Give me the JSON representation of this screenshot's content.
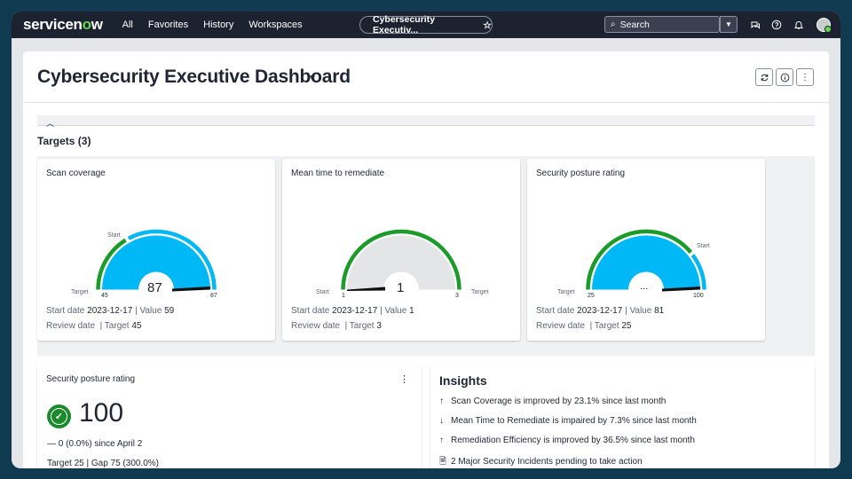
{
  "nav": {
    "brand_prefix": "servicen",
    "brand_o": "o",
    "brand_suffix": "w",
    "links": [
      "All",
      "Favorites",
      "History",
      "Workspaces"
    ],
    "pill_label": "Cybersecurity Executiv...",
    "search_label": "Search"
  },
  "dashboard": {
    "title": "Cybersecurity Executive Dashboard",
    "section_title": "Targets (3)"
  },
  "cards": [
    {
      "title": "Scan coverage",
      "center_value": "87",
      "min_label": "45",
      "max_label": "87",
      "start_label": "Start",
      "target_label": "Target",
      "start_date_label": "Start date",
      "start_date": "2023-12-17",
      "value_label": "Value",
      "value": "59",
      "review_label": "Review date",
      "target_text_label": "Target",
      "target_value": "45",
      "gauge": {
        "min": 45,
        "max": 87,
        "start": 59,
        "target": 45,
        "value": 87
      },
      "colors": {
        "fill": "#00b8f5",
        "ring_outer": "#1b9c2a",
        "ring_outer_secondary": "#00b8f5"
      }
    },
    {
      "title": "Mean time to remediate",
      "center_value": "1",
      "min_label": "1",
      "max_label": "3",
      "start_label": "Start",
      "target_label": "Target",
      "start_date_label": "Start date",
      "start_date": "2023-12-17",
      "value_label": "Value",
      "value": "1",
      "review_label": "Review date",
      "target_text_label": "Target",
      "target_value": "3",
      "gauge": {
        "min": 1,
        "max": 3,
        "start": 1,
        "target": 3,
        "value": 1
      },
      "colors": {
        "fill": "#e4e5e7",
        "ring_outer": "#1b9c2a"
      }
    },
    {
      "title": "Security posture rating",
      "center_value": "...",
      "min_label": "25",
      "max_label": "100",
      "start_label": "Start",
      "target_label": "Target",
      "start_date_label": "Start date",
      "start_date": "2023-12-17",
      "value_label": "Value",
      "value": "81",
      "review_label": "Review date",
      "target_text_label": "Target",
      "target_value": "25",
      "gauge": {
        "min": 25,
        "max": 100,
        "start": 81,
        "target": 25,
        "value": 100
      },
      "colors": {
        "fill": "#00b8f5",
        "ring_outer": "#1b9c2a",
        "ring_outer_secondary": "#00b8f5"
      }
    }
  ],
  "rating_card": {
    "title": "Security posture rating",
    "value": "100",
    "since": "— 0 (0.0%) since April 2",
    "target_gap": "Target 25 | Gap 75 (300.0%)"
  },
  "insights": {
    "title": "Insights",
    "items": [
      {
        "icon": "arrow-up-icon",
        "glyph": "↑",
        "text": "Scan Coverage is improved by 23.1% since last month"
      },
      {
        "icon": "arrow-down-icon",
        "glyph": "↓",
        "text": "Mean Time to Remediate is impaired by 7.3% since last month"
      },
      {
        "icon": "arrow-up-icon",
        "glyph": "↑",
        "text": "Remediation Efficiency is improved by 36.5% since last month"
      },
      {
        "icon": "document-icon",
        "glyph": "🗎",
        "text": "2 Major Security Incidents pending to take action"
      }
    ]
  }
}
